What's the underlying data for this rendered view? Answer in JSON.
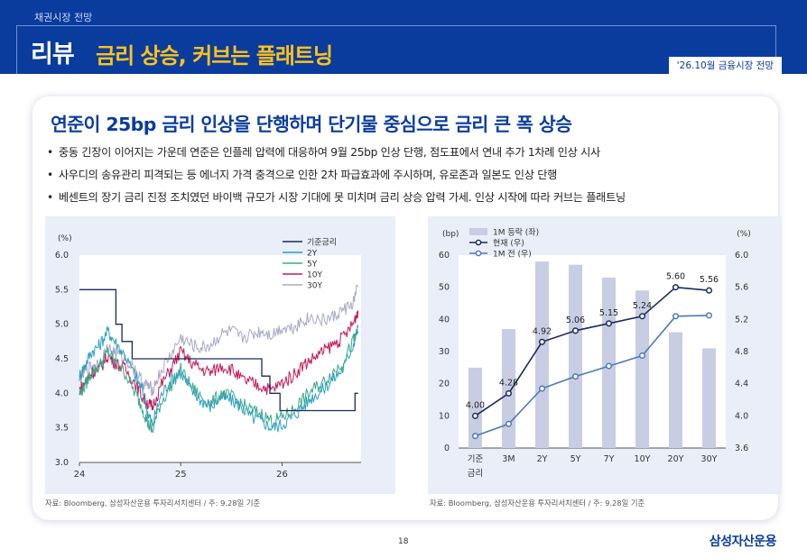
{
  "header": {
    "section": "채권시장 전망",
    "title_main": "리뷰",
    "title_sub": "금리 상승, 커브는 플래트닝",
    "date_tag": "'26.10월 금융시장 전망"
  },
  "card": {
    "headline": "연준이 25bp 금리 인상을 단행하며 단기물 중심으로 금리 큰 폭 상승",
    "bullets": [
      "중동 긴장이 이어지는 가운데 연준은 인플레 압력에 대응하여 9월 25bp 인상 단행, 점도표에서 연내 추가 1차례 인상 시사",
      "사우디의 송유관리 피격되는 등 에너지 가격 충격으로 인한 2차 파급효과에 주시하며, 유로존과 일본도 인상 단행",
      "베센트의 장기 금리 진정 조치였던 바이백 규모가 시장 기대에 못 미치며 금리 상승 압력 가세. 인상 시작에 따라 커브는 플래트닝"
    ]
  },
  "source_left": "자료: Bloomberg, 삼성자산운용 투자리서치센터 / 주: 9.28일 기준",
  "source_right": "자료: Bloomberg, 삼성자산운용 투자리서치센터 / 주: 9.28일 기준",
  "footer": {
    "page": "18",
    "logo": "삼성자산운용"
  },
  "colors": {
    "brand": "#0a3c9e",
    "accent": "#ffc21a"
  },
  "chart_data": [
    {
      "type": "line",
      "ylabel_unit": "(%)",
      "ylim": [
        3.0,
        6.0
      ],
      "yticks": [
        "3.0",
        "3.5",
        "4.0",
        "4.5",
        "5.0",
        "5.5",
        "6.0"
      ],
      "xticks": [
        "24",
        "25",
        "26"
      ],
      "legend_position": "top-right",
      "series": [
        {
          "name": "기준금리",
          "color": "#1b2a5e",
          "points": [
            [
              0,
              5.5
            ],
            [
              0.36,
              5.5
            ],
            [
              0.36,
              5.0
            ],
            [
              0.42,
              5.0
            ],
            [
              0.42,
              4.75
            ],
            [
              0.52,
              4.75
            ],
            [
              0.52,
              4.5
            ],
            [
              1.8,
              4.5
            ],
            [
              1.8,
              4.25
            ],
            [
              1.88,
              4.25
            ],
            [
              1.88,
              4.0
            ],
            [
              1.98,
              4.0
            ],
            [
              1.98,
              3.75
            ],
            [
              2.72,
              3.75
            ],
            [
              2.72,
              4.0
            ],
            [
              2.75,
              4.0
            ]
          ]
        },
        {
          "name": "2Y",
          "color": "#2e9fc2",
          "points": [
            [
              0,
              4.25
            ],
            [
              0.05,
              4.4
            ],
            [
              0.12,
              4.6
            ],
            [
              0.2,
              4.7
            ],
            [
              0.28,
              4.9
            ],
            [
              0.35,
              4.75
            ],
            [
              0.45,
              4.55
            ],
            [
              0.55,
              4.25
            ],
            [
              0.62,
              4.05
            ],
            [
              0.68,
              3.7
            ],
            [
              0.72,
              3.55
            ],
            [
              0.8,
              3.95
            ],
            [
              0.9,
              4.2
            ],
            [
              1.0,
              4.3
            ],
            [
              1.1,
              4.05
            ],
            [
              1.2,
              3.9
            ],
            [
              1.3,
              3.8
            ],
            [
              1.4,
              3.95
            ],
            [
              1.5,
              3.9
            ],
            [
              1.6,
              3.8
            ],
            [
              1.7,
              3.65
            ],
            [
              1.8,
              3.6
            ],
            [
              1.9,
              3.5
            ],
            [
              2.0,
              3.55
            ],
            [
              2.1,
              3.65
            ],
            [
              2.2,
              3.8
            ],
            [
              2.3,
              3.95
            ],
            [
              2.4,
              4.05
            ],
            [
              2.5,
              4.2
            ],
            [
              2.6,
              4.35
            ],
            [
              2.7,
              4.7
            ],
            [
              2.75,
              4.95
            ]
          ]
        },
        {
          "name": "5Y",
          "color": "#3aa88a",
          "points": [
            [
              0,
              4.0
            ],
            [
              0.05,
              4.1
            ],
            [
              0.12,
              4.3
            ],
            [
              0.2,
              4.4
            ],
            [
              0.28,
              4.6
            ],
            [
              0.35,
              4.45
            ],
            [
              0.45,
              4.3
            ],
            [
              0.55,
              4.0
            ],
            [
              0.62,
              3.8
            ],
            [
              0.68,
              3.55
            ],
            [
              0.72,
              3.45
            ],
            [
              0.8,
              3.85
            ],
            [
              0.9,
              4.1
            ],
            [
              1.0,
              4.35
            ],
            [
              1.1,
              4.1
            ],
            [
              1.2,
              3.95
            ],
            [
              1.3,
              3.85
            ],
            [
              1.4,
              4.0
            ],
            [
              1.5,
              3.95
            ],
            [
              1.6,
              3.85
            ],
            [
              1.7,
              3.75
            ],
            [
              1.8,
              3.7
            ],
            [
              1.9,
              3.6
            ],
            [
              2.0,
              3.65
            ],
            [
              2.1,
              3.75
            ],
            [
              2.2,
              3.9
            ],
            [
              2.3,
              4.05
            ],
            [
              2.4,
              4.15
            ],
            [
              2.5,
              4.3
            ],
            [
              2.6,
              4.45
            ],
            [
              2.7,
              4.75
            ],
            [
              2.75,
              4.9
            ]
          ]
        },
        {
          "name": "10Y",
          "color": "#c41a5a",
          "points": [
            [
              0,
              4.05
            ],
            [
              0.05,
              4.15
            ],
            [
              0.12,
              4.3
            ],
            [
              0.2,
              4.35
            ],
            [
              0.28,
              4.55
            ],
            [
              0.35,
              4.45
            ],
            [
              0.45,
              4.35
            ],
            [
              0.55,
              4.15
            ],
            [
              0.62,
              3.95
            ],
            [
              0.68,
              3.85
            ],
            [
              0.72,
              3.8
            ],
            [
              0.8,
              4.1
            ],
            [
              0.9,
              4.35
            ],
            [
              1.0,
              4.6
            ],
            [
              1.1,
              4.45
            ],
            [
              1.2,
              4.35
            ],
            [
              1.3,
              4.3
            ],
            [
              1.4,
              4.4
            ],
            [
              1.5,
              4.35
            ],
            [
              1.6,
              4.2
            ],
            [
              1.7,
              4.15
            ],
            [
              1.8,
              4.1
            ],
            [
              1.9,
              4.05
            ],
            [
              2.0,
              4.15
            ],
            [
              2.1,
              4.25
            ],
            [
              2.2,
              4.4
            ],
            [
              2.3,
              4.5
            ],
            [
              2.4,
              4.6
            ],
            [
              2.5,
              4.7
            ],
            [
              2.6,
              4.8
            ],
            [
              2.7,
              5.0
            ],
            [
              2.75,
              5.2
            ]
          ]
        },
        {
          "name": "30Y",
          "color": "#a8a8c8",
          "points": [
            [
              0,
              4.2
            ],
            [
              0.05,
              4.3
            ],
            [
              0.12,
              4.4
            ],
            [
              0.2,
              4.45
            ],
            [
              0.28,
              4.65
            ],
            [
              0.35,
              4.6
            ],
            [
              0.45,
              4.5
            ],
            [
              0.55,
              4.35
            ],
            [
              0.62,
              4.15
            ],
            [
              0.68,
              4.1
            ],
            [
              0.72,
              4.05
            ],
            [
              0.8,
              4.3
            ],
            [
              0.9,
              4.55
            ],
            [
              1.0,
              4.8
            ],
            [
              1.1,
              4.7
            ],
            [
              1.2,
              4.65
            ],
            [
              1.3,
              4.7
            ],
            [
              1.4,
              4.85
            ],
            [
              1.5,
              4.9
            ],
            [
              1.6,
              4.8
            ],
            [
              1.7,
              4.85
            ],
            [
              1.8,
              4.9
            ],
            [
              1.9,
              4.85
            ],
            [
              2.0,
              4.95
            ],
            [
              2.1,
              4.95
            ],
            [
              2.2,
              5.05
            ],
            [
              2.3,
              5.1
            ],
            [
              2.4,
              5.05
            ],
            [
              2.5,
              5.1
            ],
            [
              2.6,
              5.2
            ],
            [
              2.7,
              5.3
            ],
            [
              2.75,
              5.55
            ]
          ]
        }
      ]
    },
    {
      "type": "bar+line",
      "left_unit": "(bp)",
      "right_unit": "(%)",
      "categories": [
        "기준\n금리",
        "3M",
        "2Y",
        "5Y",
        "7Y",
        "10Y",
        "20Y",
        "30Y"
      ],
      "left_ylim": [
        0,
        60
      ],
      "left_yticks": [
        "0",
        "10",
        "20",
        "30",
        "40",
        "50",
        "60"
      ],
      "right_ylim": [
        3.6,
        6.0
      ],
      "right_yticks": [
        "3.6",
        "4.0",
        "4.4",
        "4.8",
        "5.2",
        "5.6",
        "6.0"
      ],
      "legend_position": "top-left",
      "bars": {
        "name": "1M 등락 (좌)",
        "color": "#c9cde3",
        "values": [
          25,
          37,
          58,
          57,
          53,
          49,
          36,
          31
        ]
      },
      "current": {
        "name": "현재 (우)",
        "color": "#1b2a5e",
        "values": [
          4.0,
          4.28,
          4.92,
          5.06,
          5.15,
          5.24,
          5.6,
          5.56
        ],
        "labels": [
          "4.00",
          "4.28",
          "4.92",
          "5.06",
          "5.15",
          "5.24",
          "5.60",
          "5.56"
        ]
      },
      "prev": {
        "name": "1M 전 (우)",
        "color": "#4a7ab8",
        "values": [
          3.75,
          3.9,
          4.34,
          4.49,
          4.62,
          4.75,
          5.24,
          5.25
        ]
      }
    }
  ]
}
